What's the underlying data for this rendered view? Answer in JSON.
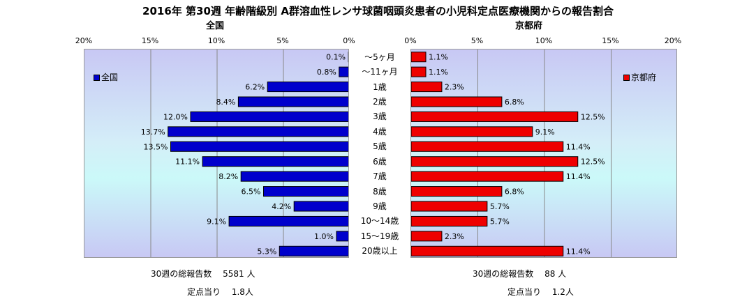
{
  "title": "2016年 第30週 年齢階級別 A群溶血性レンサ球菌咽頭炎患者の小児科定点医療機関からの報告割合",
  "chart_data": [
    {
      "type": "bar",
      "orientation": "horizontal",
      "subtitle": "全国",
      "xlim": [
        0,
        20
      ],
      "direction": "right-to-left",
      "tick_labels": [
        "0%",
        "5%",
        "10%",
        "15%",
        "20%"
      ],
      "categories": [
        "～5ヶ月",
        "～11ヶ月",
        "1歳",
        "2歳",
        "3歳",
        "4歳",
        "5歳",
        "6歳",
        "7歳",
        "8歳",
        "9歳",
        "10～14歳",
        "15～19歳",
        "20歳以上"
      ],
      "series": [
        {
          "name": "全国",
          "color": "#0000cc",
          "values": [
            0.1,
            0.8,
            6.2,
            8.4,
            12.0,
            13.7,
            13.5,
            11.1,
            8.2,
            6.5,
            4.2,
            9.1,
            1.0,
            5.3
          ],
          "labels": [
            "0.1%",
            "0.8%",
            "6.2%",
            "8.4%",
            "12.0%",
            "13.7%",
            "13.5%",
            "11.1%",
            "8.2%",
            "6.5%",
            "4.2%",
            "9.1%",
            "1.0%",
            "5.3%"
          ]
        }
      ],
      "legend": "left",
      "grid": true
    },
    {
      "type": "bar",
      "orientation": "horizontal",
      "subtitle": "京都府",
      "xlim": [
        0,
        20
      ],
      "direction": "left-to-right",
      "tick_labels": [
        "0%",
        "5%",
        "10%",
        "15%",
        "20%"
      ],
      "categories": [
        "～5ヶ月",
        "～11ヶ月",
        "1歳",
        "2歳",
        "3歳",
        "4歳",
        "5歳",
        "6歳",
        "7歳",
        "8歳",
        "9歳",
        "10～14歳",
        "15～19歳",
        "20歳以上"
      ],
      "series": [
        {
          "name": "京都府",
          "color": "#ee0000",
          "values": [
            1.1,
            1.1,
            2.3,
            6.8,
            12.5,
            9.1,
            11.4,
            12.5,
            11.4,
            6.8,
            5.7,
            5.7,
            2.3,
            11.4
          ],
          "labels": [
            "1.1%",
            "1.1%",
            "2.3%",
            "6.8%",
            "12.5%",
            "9.1%",
            "11.4%",
            "12.5%",
            "11.4%",
            "6.8%",
            "5.7%",
            "5.7%",
            "2.3%",
            "11.4%"
          ]
        }
      ],
      "legend": "right",
      "grid": true
    }
  ],
  "footer": {
    "left_total": "30週の総報告数　 5581 人",
    "left_per": "定点当り　 1.8人",
    "right_total": "30週の総報告数　 88 人",
    "right_per": "定点当り　 1.2人"
  }
}
